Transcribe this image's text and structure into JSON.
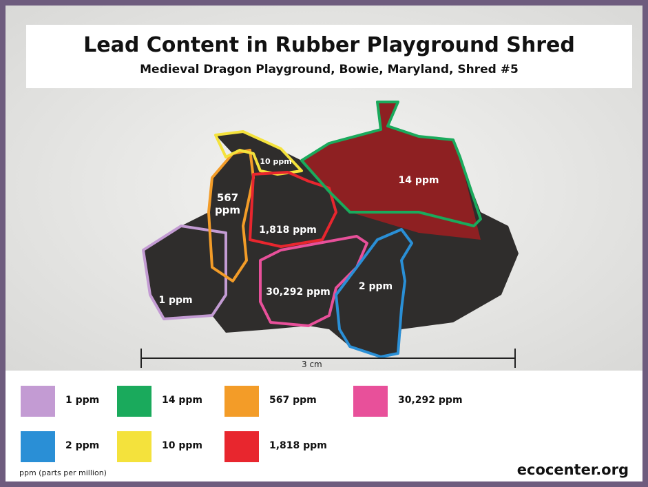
{
  "header": {
    "title": "Lead Content in Rubber Playground Shred",
    "subtitle": "Medieval Dragon Playground, Bowie, Maryland, Shred #5"
  },
  "regions": [
    {
      "label": "1 ppm",
      "color": "#c39bd3"
    },
    {
      "label": "567 ppm",
      "color": "#f39c28"
    },
    {
      "label": "10 ppm",
      "color": "#f4e23c"
    },
    {
      "label": "1,818 ppm",
      "color": "#e8262e"
    },
    {
      "label": "14 ppm",
      "color": "#1aaa5c"
    },
    {
      "label": "30,292 ppm",
      "color": "#e8509a"
    },
    {
      "label": "2 ppm",
      "color": "#2a8fd6"
    }
  ],
  "scale": "3 cm",
  "legend": [
    {
      "label": "1 ppm",
      "color": "#c39bd3"
    },
    {
      "label": "14 ppm",
      "color": "#1aaa5c"
    },
    {
      "label": "567 ppm",
      "color": "#f39c28"
    },
    {
      "label": "30,292 ppm",
      "color": "#e8509a"
    },
    {
      "label": "2 ppm",
      "color": "#2a8fd6"
    },
    {
      "label": "10 ppm",
      "color": "#f4e23c"
    },
    {
      "label": "1,818 ppm",
      "color": "#e8262e"
    }
  ],
  "footnote": "ppm (parts per million)",
  "source": "ecocenter.org"
}
